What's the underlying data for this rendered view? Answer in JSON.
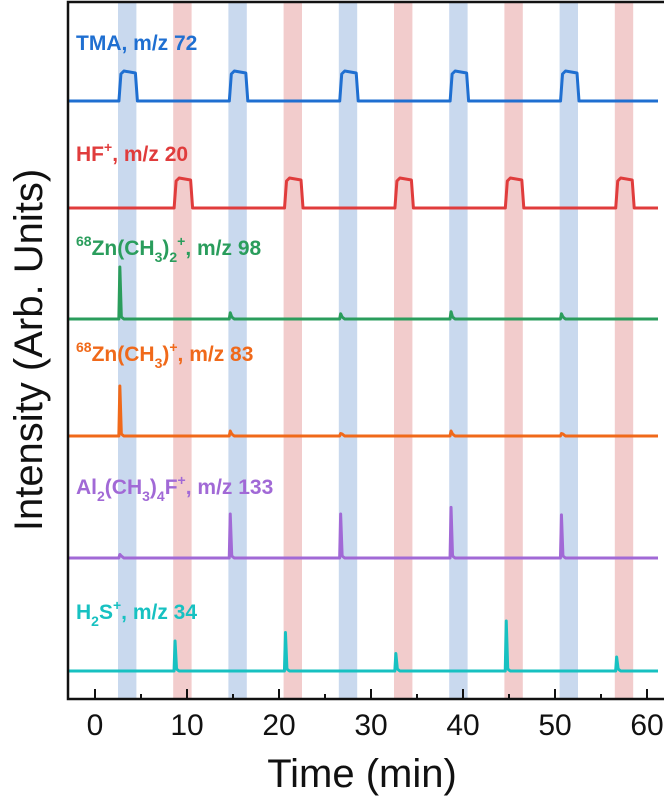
{
  "chart_data": {
    "type": "line",
    "xlabel": "Time (min)",
    "ylabel": "Intensity (Arb. Units)",
    "xlim": [
      -3,
      60
    ],
    "xticks": [
      0,
      10,
      20,
      30,
      40,
      50,
      60
    ],
    "y_ticks_shown": false,
    "bands": {
      "blue": [
        [
          2.5,
          4.5
        ],
        [
          14.5,
          16.5
        ],
        [
          26.5,
          28.5
        ],
        [
          38.5,
          40.5
        ],
        [
          50.5,
          52.5
        ]
      ],
      "red": [
        [
          8.5,
          10.5
        ],
        [
          20.5,
          22.5
        ],
        [
          32.5,
          34.5
        ],
        [
          44.5,
          46.5
        ],
        [
          56.5,
          58.5
        ]
      ],
      "blue_color": "#c9d9ee",
      "red_color": "#f2cccc"
    },
    "series": [
      {
        "name": "TMA, m/z 72",
        "label_parts": {
          "main": "TMA, m/z 72"
        },
        "color": "#1f6fd1",
        "kind": "pulse",
        "pulses": [
          [
            2.6,
            4.5
          ],
          [
            14.6,
            16.5
          ],
          [
            26.6,
            28.5
          ],
          [
            38.6,
            40.5
          ],
          [
            50.6,
            52.5
          ]
        ],
        "pulse_height": 1.0
      },
      {
        "name": "HF+, m/z 20",
        "label_parts": {
          "a": "HF",
          "b": "+",
          "c": ", m/z 20"
        },
        "color": "#e03c3c",
        "kind": "pulse",
        "pulses": [
          [
            8.6,
            10.5
          ],
          [
            20.6,
            22.5
          ],
          [
            32.6,
            34.5
          ],
          [
            44.6,
            46.5
          ],
          [
            56.6,
            58.5
          ]
        ],
        "pulse_height": 1.0
      },
      {
        "name": "68Zn(CH3)2+, m/z 98",
        "label_parts": {
          "a": "68",
          "b": "Zn(CH",
          "c": "3",
          "d": ")",
          "e": "2",
          "f": "+",
          "g": ", m/z 98"
        },
        "color": "#2a9d5c",
        "kind": "spike",
        "spikes": [
          [
            2.7,
            1.0
          ],
          [
            14.7,
            0.12
          ],
          [
            26.7,
            0.1
          ],
          [
            38.7,
            0.14
          ],
          [
            50.7,
            0.1
          ]
        ]
      },
      {
        "name": "68Zn(CH3)+, m/z 83",
        "label_parts": {
          "a": "68",
          "b": "Zn(CH",
          "c": "3",
          "d": ")",
          "f": "+",
          "g": ", m/z 83"
        },
        "color": "#f0691a",
        "kind": "spike",
        "spikes": [
          [
            2.7,
            1.0
          ],
          [
            14.7,
            0.1
          ],
          [
            26.7,
            0.05
          ],
          [
            38.7,
            0.1
          ],
          [
            50.7,
            0.05
          ]
        ]
      },
      {
        "name": "Al2(CH3)4F+, m/z 133",
        "label_parts": {
          "a": "Al",
          "b": "2",
          "c": "(CH",
          "d": "3",
          "e": ")",
          "f": "4",
          "g": "F",
          "h": "+",
          "i": ", m/z 133"
        },
        "color": "#a169d6",
        "kind": "spike",
        "spikes": [
          [
            2.7,
            0.08
          ],
          [
            14.7,
            1.0
          ],
          [
            26.7,
            1.0
          ],
          [
            38.7,
            1.15
          ],
          [
            50.7,
            0.98
          ]
        ]
      },
      {
        "name": "H2S+, m/z 34",
        "label_parts": {
          "a": "H",
          "b": "2",
          "c": "S",
          "d": "+",
          "e": ", m/z 34"
        },
        "color": "#17c1c1",
        "kind": "spike",
        "spikes": [
          [
            8.7,
            0.6
          ],
          [
            20.7,
            0.77
          ],
          [
            32.7,
            0.35
          ],
          [
            44.7,
            1.0
          ],
          [
            56.7,
            0.28
          ]
        ]
      }
    ]
  }
}
